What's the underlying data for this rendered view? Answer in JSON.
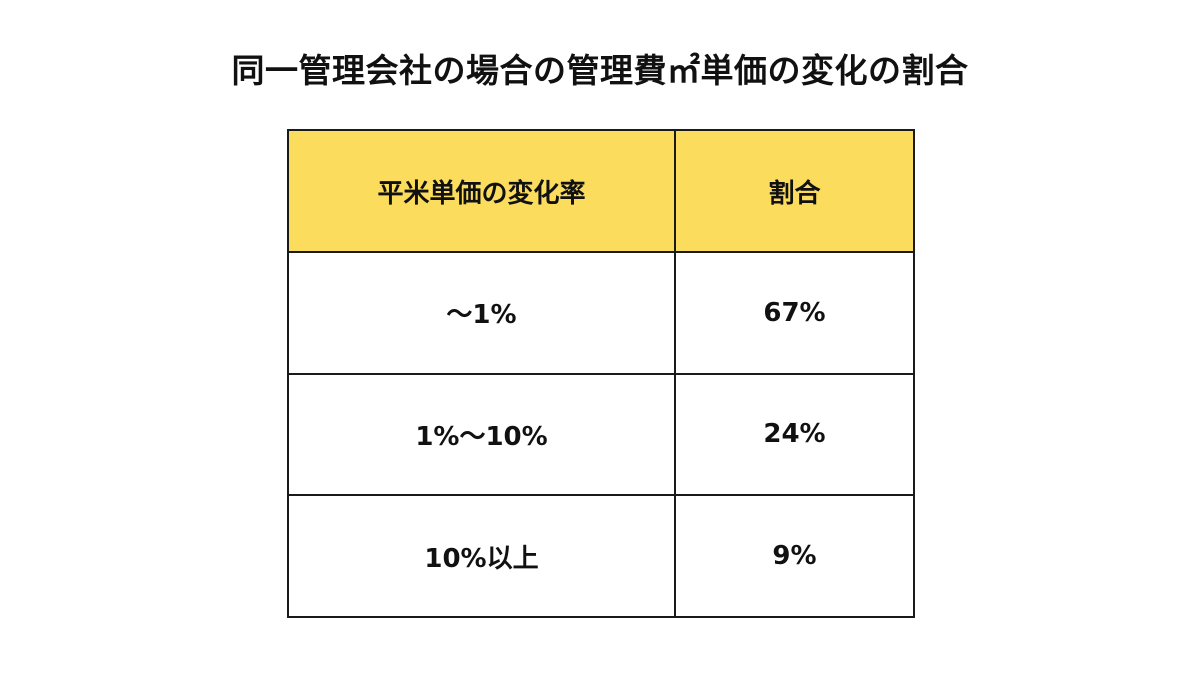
{
  "title": "同一管理会社の場合の管理費㎡単価の変化の割合",
  "colors": {
    "header_background": "#FBDC5C",
    "border": "#1A1A1A",
    "text": "#111111",
    "background": "#FFFFFF"
  },
  "chart_data": {
    "type": "table",
    "title": "同一管理会社の場合の管理費㎡単価の変化の割合",
    "columns": [
      "平米単価の変化率",
      "割合"
    ],
    "rows": [
      [
        "〜1%",
        "67%"
      ],
      [
        "1%〜10%",
        "24%"
      ],
      [
        "10%以上",
        "9%"
      ]
    ],
    "values": [
      67,
      24,
      9
    ]
  }
}
